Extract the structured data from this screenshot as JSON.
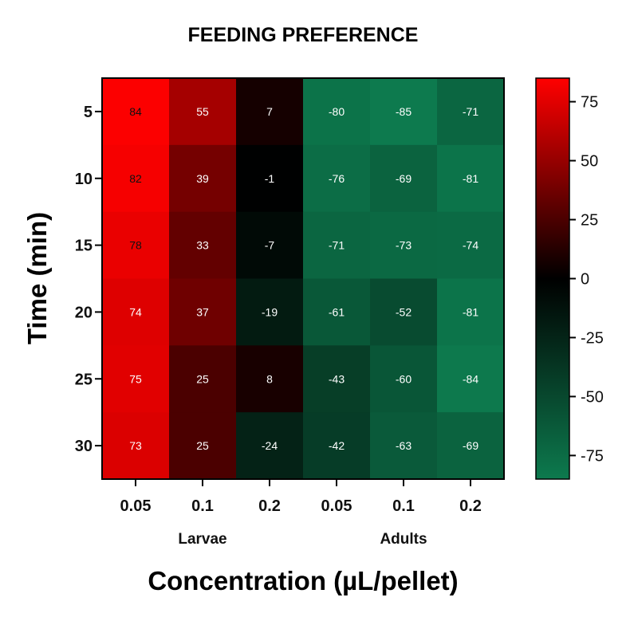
{
  "chart_data": {
    "type": "heatmap",
    "title": "FEEDING PREFERENCE",
    "xlabel": "Concentration (µL/pellet)",
    "ylabel": "Time (min)",
    "x_tick_labels": [
      "0.05",
      "0.1",
      "0.2",
      "0.05",
      "0.1",
      "0.2"
    ],
    "x_groups": [
      {
        "label": "Larvae",
        "columns": [
          0,
          1,
          2
        ]
      },
      {
        "label": "Adults",
        "columns": [
          3,
          4,
          5
        ]
      }
    ],
    "y_tick_labels": [
      "5",
      "10",
      "15",
      "20",
      "25",
      "30"
    ],
    "values": [
      [
        84,
        55,
        7,
        -80,
        -85,
        -71
      ],
      [
        82,
        39,
        -1,
        -76,
        -69,
        -81
      ],
      [
        78,
        33,
        -7,
        -71,
        -73,
        -74
      ],
      [
        74,
        37,
        -19,
        -61,
        -52,
        -81
      ],
      [
        75,
        25,
        8,
        -43,
        -60,
        -84
      ],
      [
        73,
        25,
        -24,
        -42,
        -63,
        -69
      ]
    ],
    "colorbar": {
      "ticks": [
        75,
        50,
        25,
        0,
        -25,
        -50,
        -75
      ],
      "range": [
        -85,
        85
      ],
      "colors": {
        "max": "#ff0000",
        "mid": "#000000",
        "min": "#0d7a4e"
      }
    }
  }
}
